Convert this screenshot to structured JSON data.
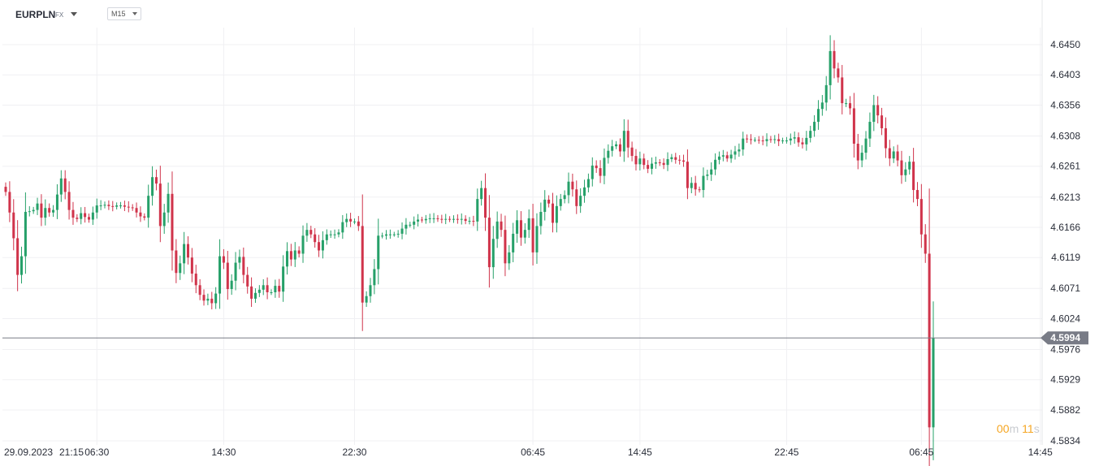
{
  "toolbar": {
    "symbol": "EURPLN",
    "market": "FX",
    "timeframe": "M15"
  },
  "timer": {
    "minutes": "00",
    "minutes_unit": "m",
    "seconds": "11",
    "seconds_unit": "s"
  },
  "chart_data": {
    "type": "candlestick",
    "ylim": [
      4.581,
      4.65
    ],
    "y_ticks": [
      "4.6450",
      "4.6403",
      "4.6356",
      "4.6308",
      "4.6261",
      "4.6213",
      "4.6166",
      "4.6119",
      "4.6071",
      "4.6024",
      "4.5976",
      "4.5929",
      "4.5882",
      "4.5834"
    ],
    "x_ticks": [
      "29.09.2023",
      "21:15",
      "06:30",
      "14:30",
      "22:30",
      "06:45",
      "14:45",
      "22:45",
      "06:45",
      "14:45"
    ],
    "last_price": "4.5994",
    "colors": {
      "up": "#26a069",
      "down": "#d0344b",
      "price_line": "#787b86",
      "price_tag": "#787b86",
      "grid": "#f0f0f3"
    },
    "grid": true,
    "candle_closes": [
      4.6221,
      4.6189,
      4.6149,
      4.6092,
      4.6121,
      4.619,
      4.6191,
      4.6193,
      4.6203,
      4.6181,
      4.6196,
      4.6189,
      4.6193,
      4.6217,
      4.6242,
      4.6221,
      4.6193,
      4.6181,
      4.6179,
      4.6188,
      4.6182,
      4.6178,
      4.6189,
      4.62,
      4.62,
      4.6201,
      4.6199,
      4.6198,
      4.62,
      4.62,
      4.6198,
      4.6197,
      4.6196,
      4.6189,
      4.6183,
      4.6181,
      4.6215,
      4.6244,
      4.6234,
      4.6168,
      4.6189,
      4.6218,
      4.613,
      4.6095,
      4.611,
      4.614,
      4.6119,
      4.6094,
      4.6076,
      4.6061,
      4.6052,
      4.6055,
      4.6048,
      4.6063,
      4.6121,
      4.6111,
      4.607,
      4.6083,
      4.6111,
      4.612,
      4.6092,
      4.6074,
      4.6055,
      4.6064,
      4.6069,
      4.6076,
      4.6065,
      4.6065,
      4.6075,
      4.6066,
      4.6105,
      4.6129,
      4.6116,
      4.613,
      4.6125,
      4.6153,
      4.6162,
      4.6155,
      4.6143,
      4.613,
      4.6146,
      4.6155,
      4.6155,
      4.6155,
      4.6158,
      4.6174,
      4.6179,
      4.6175,
      4.6175,
      4.6168,
      4.6049,
      4.6059,
      4.6076,
      4.6101,
      4.6153,
      4.6153,
      4.6155,
      4.6155,
      4.6155,
      4.6156,
      4.6164,
      4.617,
      4.617,
      4.6175,
      4.6178,
      4.6177,
      4.6179,
      4.618,
      4.618,
      4.6179,
      4.6178,
      4.6179,
      4.6178,
      4.6179,
      4.6178,
      4.6179,
      4.6176,
      4.6176,
      4.6175,
      4.621,
      4.6227,
      4.6181,
      4.6104,
      4.6148,
      4.6175,
      4.6162,
      4.611,
      4.6127,
      4.6156,
      4.6177,
      4.615,
      4.6162,
      4.618,
      4.6127,
      4.6168,
      4.619,
      4.6209,
      4.6203,
      4.6173,
      4.6199,
      4.621,
      4.6216,
      4.6237,
      4.6225,
      4.6199,
      4.6215,
      4.6228,
      4.6241,
      4.6262,
      4.6258,
      4.6246,
      4.6274,
      4.6285,
      4.6292,
      4.6295,
      4.6284,
      4.6316,
      4.629,
      4.6277,
      4.6264,
      4.6273,
      4.6263,
      4.6257,
      4.6265,
      4.6267,
      4.6266,
      4.6263,
      4.6272,
      4.6275,
      4.6271,
      4.627,
      4.6268,
      4.6227,
      4.6235,
      4.6225,
      4.6224,
      4.6246,
      4.6248,
      4.6256,
      4.6271,
      4.6276,
      4.6278,
      4.6273,
      4.6279,
      4.6284,
      4.6287,
      4.6304,
      4.6303,
      4.6302,
      4.6302,
      4.6301,
      4.63,
      4.6303,
      4.6302,
      4.6303,
      4.63,
      4.6301,
      4.6301,
      4.6304,
      4.6306,
      4.6298,
      4.6295,
      4.6305,
      4.6316,
      4.633,
      4.635,
      4.636,
      4.6387,
      4.644,
      4.6413,
      4.6399,
      4.6359,
      4.6359,
      4.6351,
      4.6296,
      4.627,
      4.6282,
      4.6304,
      4.633,
      4.6356,
      4.634,
      4.632,
      4.6289,
      4.6273,
      4.6284,
      4.627,
      4.6247,
      4.6256,
      4.6268,
      4.6224,
      4.621,
      4.6155,
      4.6125,
      4.5855,
      4.5994
    ],
    "x_tick_candle_index": [
      0,
      11,
      23,
      55,
      88,
      133,
      160,
      197,
      231,
      261
    ]
  }
}
